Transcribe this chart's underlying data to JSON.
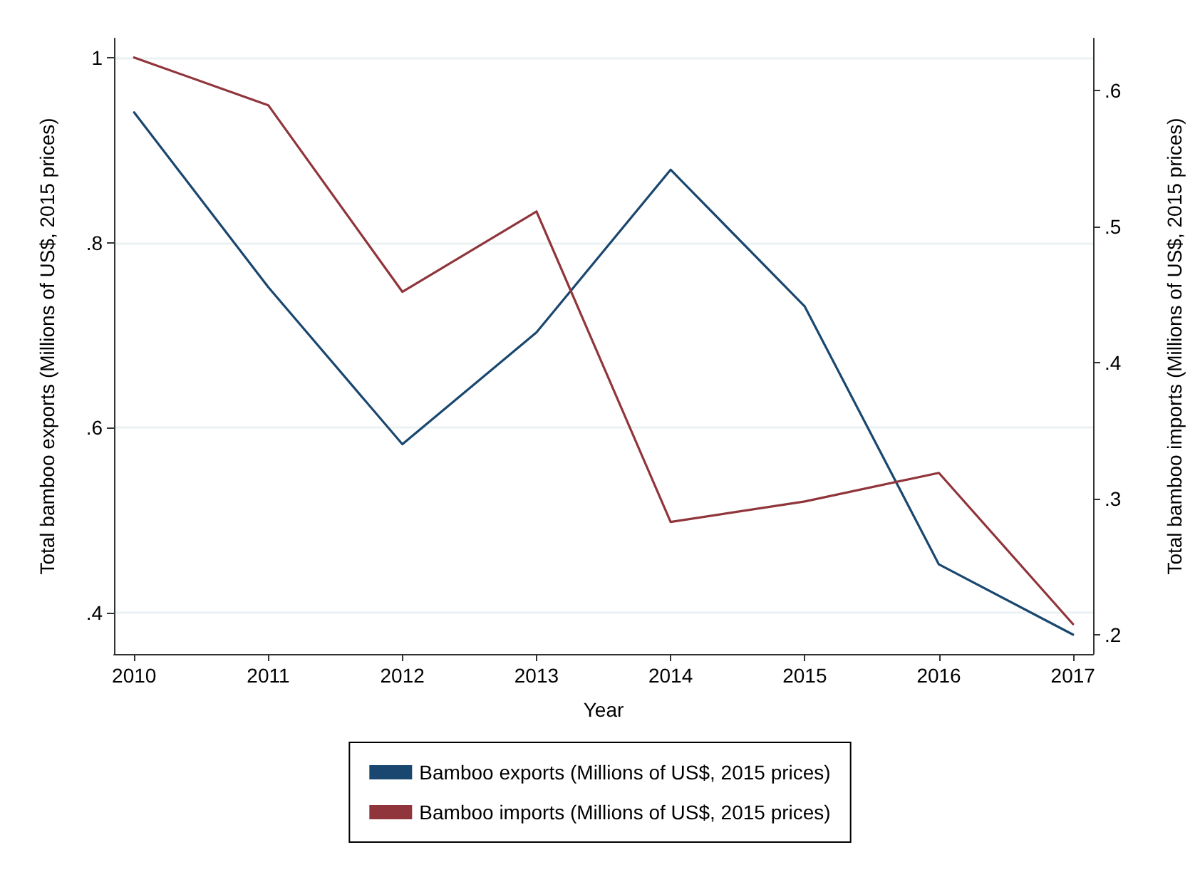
{
  "chart_data": {
    "type": "line",
    "xlabel": "Year",
    "ylabel": "Total bamboo exports (Millions of US$, 2015 prices)",
    "y2label": "Total bamboo imports (Millions of US$, 2015 prices)",
    "x": [
      2010,
      2011,
      2012,
      2013,
      2014,
      2015,
      2016,
      2017
    ],
    "series": [
      {
        "name": "Bamboo exports (Millions of US$, 2015 prices)",
        "color": "#1a476f",
        "values": [
          0.941,
          0.752,
          0.582,
          0.703,
          0.879,
          0.731,
          0.452,
          0.376
        ]
      },
      {
        "name": "Bamboo imports (Millions of US$, 2015 prices)",
        "color": "#90353b",
        "axis": "y2",
        "values": [
          0.624,
          0.589,
          0.452,
          0.511,
          0.283,
          0.298,
          0.319,
          0.208
        ]
      }
    ],
    "xlim": [
      2009.85,
      2017.15
    ],
    "xticks": [
      2010,
      2011,
      2012,
      2013,
      2014,
      2015,
      2016,
      2017
    ],
    "ylim": [
      0.355,
      1.021
    ],
    "yticks": [
      {
        "value": 0.4,
        "label": ".4"
      },
      {
        "value": 0.6,
        "label": ".6"
      },
      {
        "value": 0.8,
        "label": ".8"
      },
      {
        "value": 1,
        "label": "1"
      }
    ],
    "y2lim": [
      0.186,
      0.638
    ],
    "y2ticks": [
      {
        "value": 0.2,
        "label": ".2"
      },
      {
        "value": 0.3,
        "label": ".3"
      },
      {
        "value": 0.4,
        "label": ".4"
      },
      {
        "value": 0.5,
        "label": ".5"
      },
      {
        "value": 0.6,
        "label": ".6"
      }
    ],
    "grid": "y",
    "legend": "bottom",
    "marker": "none",
    "line_style": "solid"
  }
}
